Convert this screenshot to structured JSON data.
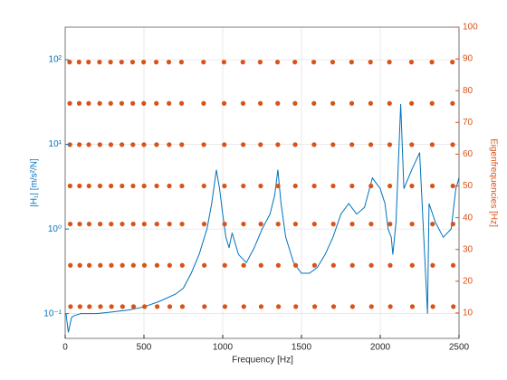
{
  "chart_data": {
    "type": "line",
    "xlabel": "Frequency [Hz]",
    "ylabel": "|H₁| [m/s²/N]",
    "y2label": "Eigenfrequencies [Hz]",
    "xlim": [
      0,
      2500
    ],
    "xticks": [
      0,
      500,
      1000,
      1500,
      2000,
      2500
    ],
    "ylim": [
      0.051,
      243
    ],
    "yscale": "log",
    "yticks": [
      {
        "value": 0.1,
        "label": "10⁻¹"
      },
      {
        "value": 1,
        "label": "10⁰"
      },
      {
        "value": 10,
        "label": "10¹"
      },
      {
        "value": 100,
        "label": "10²"
      }
    ],
    "y2lim": [
      2,
      100
    ],
    "y2ticks": [
      10,
      20,
      30,
      40,
      50,
      60,
      70,
      80,
      90,
      100
    ],
    "grid": true,
    "series": [
      {
        "type": "line",
        "color": "#0072BD",
        "x": [
          5,
          20,
          40,
          60,
          100,
          200,
          300,
          400,
          500,
          600,
          700,
          750,
          800,
          850,
          900,
          930,
          960,
          980,
          1000,
          1020,
          1040,
          1060,
          1100,
          1150,
          1200,
          1250,
          1300,
          1330,
          1350,
          1370,
          1400,
          1450,
          1500,
          1550,
          1600,
          1650,
          1700,
          1750,
          1800,
          1850,
          1900,
          1950,
          2000,
          2030,
          2050,
          2070,
          2080,
          2100,
          2130,
          2150,
          2200,
          2250,
          2300,
          2310,
          2350,
          2400,
          2450,
          2480,
          2500
        ],
        "values": [
          0.1,
          0.06,
          0.09,
          0.095,
          0.1,
          0.1,
          0.105,
          0.11,
          0.12,
          0.14,
          0.17,
          0.2,
          0.3,
          0.5,
          1.0,
          2,
          5,
          3,
          1.5,
          0.8,
          0.6,
          0.9,
          0.5,
          0.4,
          0.6,
          1.0,
          1.5,
          2.5,
          5,
          2,
          0.8,
          0.4,
          0.3,
          0.3,
          0.35,
          0.5,
          0.8,
          1.5,
          2.0,
          1.5,
          1.8,
          4,
          3,
          2,
          1,
          0.8,
          0.5,
          1.2,
          30,
          3,
          5,
          8,
          0.1,
          2,
          1.2,
          0.8,
          1.0,
          3,
          4
        ]
      },
      {
        "type": "scatter",
        "axis": "y2",
        "color": "#D95319",
        "x": [
          34,
          33,
          32,
          31,
          30,
          29,
          28,
          94,
          93,
          92,
          91,
          90,
          89,
          88,
          154,
          153,
          152,
          151,
          150,
          149,
          148,
          224,
          223,
          222,
          221,
          220,
          219,
          218,
          294,
          293,
          292,
          291,
          290,
          289,
          288,
          364,
          363,
          362,
          361,
          360,
          359,
          358,
          434,
          433,
          432,
          431,
          430,
          429,
          428,
          504,
          503,
          502,
          501,
          500,
          499,
          498,
          584,
          583,
          582,
          581,
          580,
          579,
          578,
          664,
          663,
          662,
          661,
          660,
          659,
          658,
          744,
          743,
          742,
          741,
          740,
          739,
          738,
          884,
          883,
          882,
          881,
          880,
          879,
          878,
          1014,
          1013,
          1012,
          1011,
          1010,
          1009,
          1008,
          1134,
          1133,
          1132,
          1131,
          1130,
          1129,
          1128,
          1244,
          1243,
          1242,
          1241,
          1240,
          1239,
          1238,
          1354,
          1353,
          1352,
          1351,
          1350,
          1349,
          1348,
          1464,
          1463,
          1462,
          1461,
          1460,
          1459,
          1458,
          1584,
          1583,
          1582,
          1581,
          1580,
          1579,
          1578,
          1704,
          1703,
          1702,
          1701,
          1700,
          1699,
          1698,
          1824,
          1823,
          1822,
          1821,
          1820,
          1819,
          1818,
          1944,
          1943,
          1942,
          1941,
          1940,
          1939,
          1938,
          2064,
          2063,
          2062,
          2061,
          2060,
          2059,
          2058,
          2204,
          2203,
          2202,
          2201,
          2200,
          2199,
          2198,
          2334,
          2333,
          2332,
          2331,
          2330,
          2329,
          2328,
          2464,
          2463,
          2462,
          2461,
          2460,
          2459,
          2458
        ],
        "values": [
          12,
          25,
          38,
          50,
          63,
          76,
          89,
          12,
          25,
          38,
          50,
          63,
          76,
          89,
          12,
          25,
          38,
          50,
          63,
          76,
          89,
          12,
          25,
          38,
          50,
          63,
          76,
          89,
          12,
          25,
          38,
          50,
          63,
          76,
          89,
          12,
          25,
          38,
          50,
          63,
          76,
          89,
          12,
          25,
          38,
          50,
          63,
          76,
          89,
          12,
          25,
          38,
          50,
          63,
          76,
          89,
          12,
          25,
          38,
          50,
          63,
          76,
          89,
          12,
          25,
          38,
          50,
          63,
          76,
          89,
          12,
          25,
          38,
          50,
          63,
          76,
          89,
          12,
          25,
          38,
          50,
          63,
          76,
          89,
          12,
          25,
          38,
          50,
          63,
          76,
          89,
          12,
          25,
          38,
          50,
          63,
          76,
          89,
          12,
          25,
          38,
          50,
          63,
          76,
          89,
          12,
          25,
          38,
          50,
          63,
          76,
          89,
          12,
          25,
          38,
          50,
          63,
          76,
          89,
          12,
          25,
          38,
          50,
          63,
          76,
          89,
          12,
          25,
          38,
          50,
          63,
          76,
          89,
          12,
          25,
          38,
          50,
          63,
          76,
          89,
          12,
          25,
          38,
          50,
          63,
          76,
          89,
          12,
          25,
          38,
          50,
          63,
          76,
          89,
          12,
          25,
          38,
          50,
          63,
          76,
          89,
          12,
          25,
          38,
          50,
          63,
          76,
          89,
          12,
          25,
          38,
          50,
          63,
          76,
          89
        ]
      }
    ]
  }
}
